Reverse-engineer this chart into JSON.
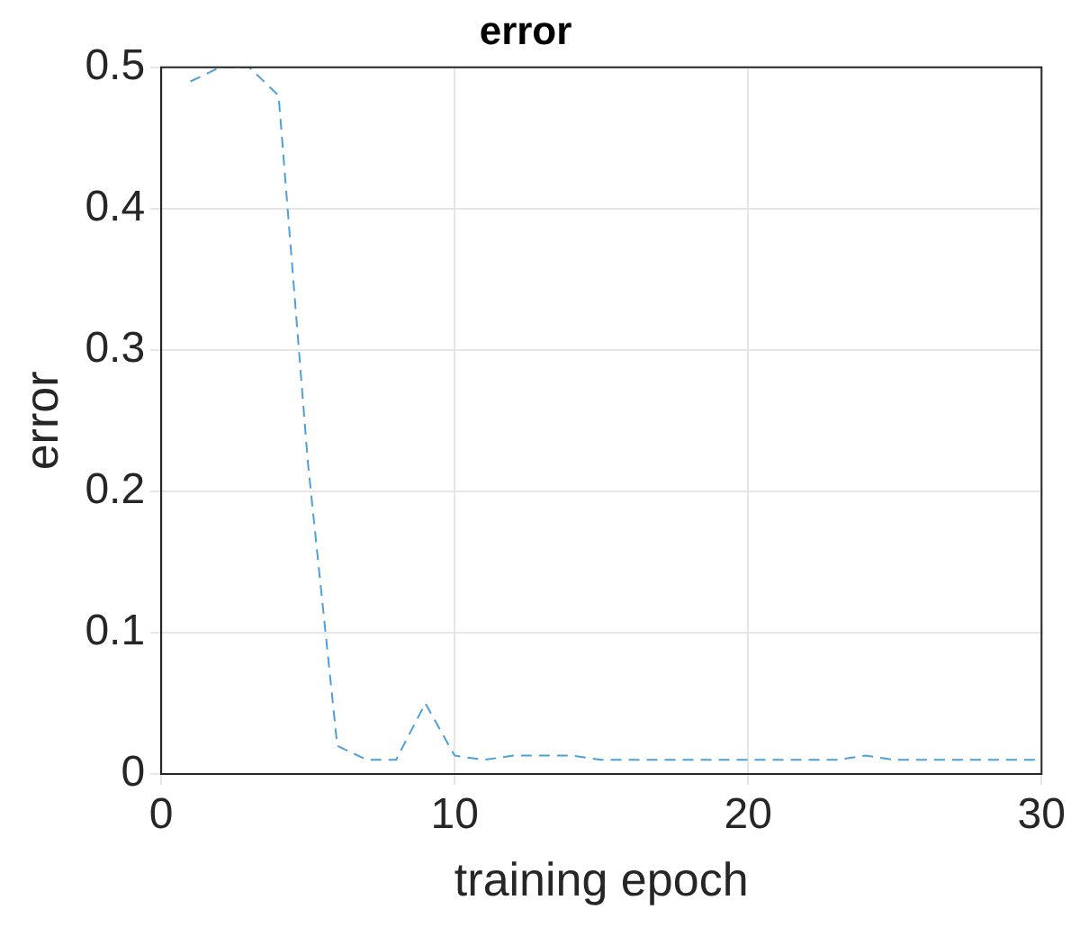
{
  "chart_data": {
    "type": "line",
    "title": "error",
    "xlabel": "training epoch",
    "ylabel": "error",
    "x": [
      1,
      2,
      3,
      4,
      5,
      6,
      7,
      8,
      9,
      10,
      11,
      12,
      13,
      14,
      15,
      16,
      17,
      18,
      19,
      20,
      21,
      22,
      23,
      24,
      25,
      26,
      27,
      28,
      29,
      30
    ],
    "series": [
      {
        "color": "#4f9fd9",
        "values": [
          0.49,
          0.5,
          0.5,
          0.48,
          0.22,
          0.02,
          0.01,
          0.01,
          0.05,
          0.013,
          0.01,
          0.013,
          0.013,
          0.013,
          0.01,
          0.01,
          0.01,
          0.01,
          0.01,
          0.01,
          0.01,
          0.01,
          0.01,
          0.013,
          0.01,
          0.01,
          0.01,
          0.01,
          0.01,
          0.01
        ]
      }
    ],
    "xlim": [
      0,
      30
    ],
    "xticks": [
      0,
      10,
      20,
      30
    ],
    "ylim": [
      0,
      0.5
    ],
    "yticks": [
      0,
      0.1,
      0.2,
      0.3,
      0.4,
      0.5
    ],
    "grid": true,
    "legend": false,
    "marker": "none",
    "line_style": "dashed"
  }
}
